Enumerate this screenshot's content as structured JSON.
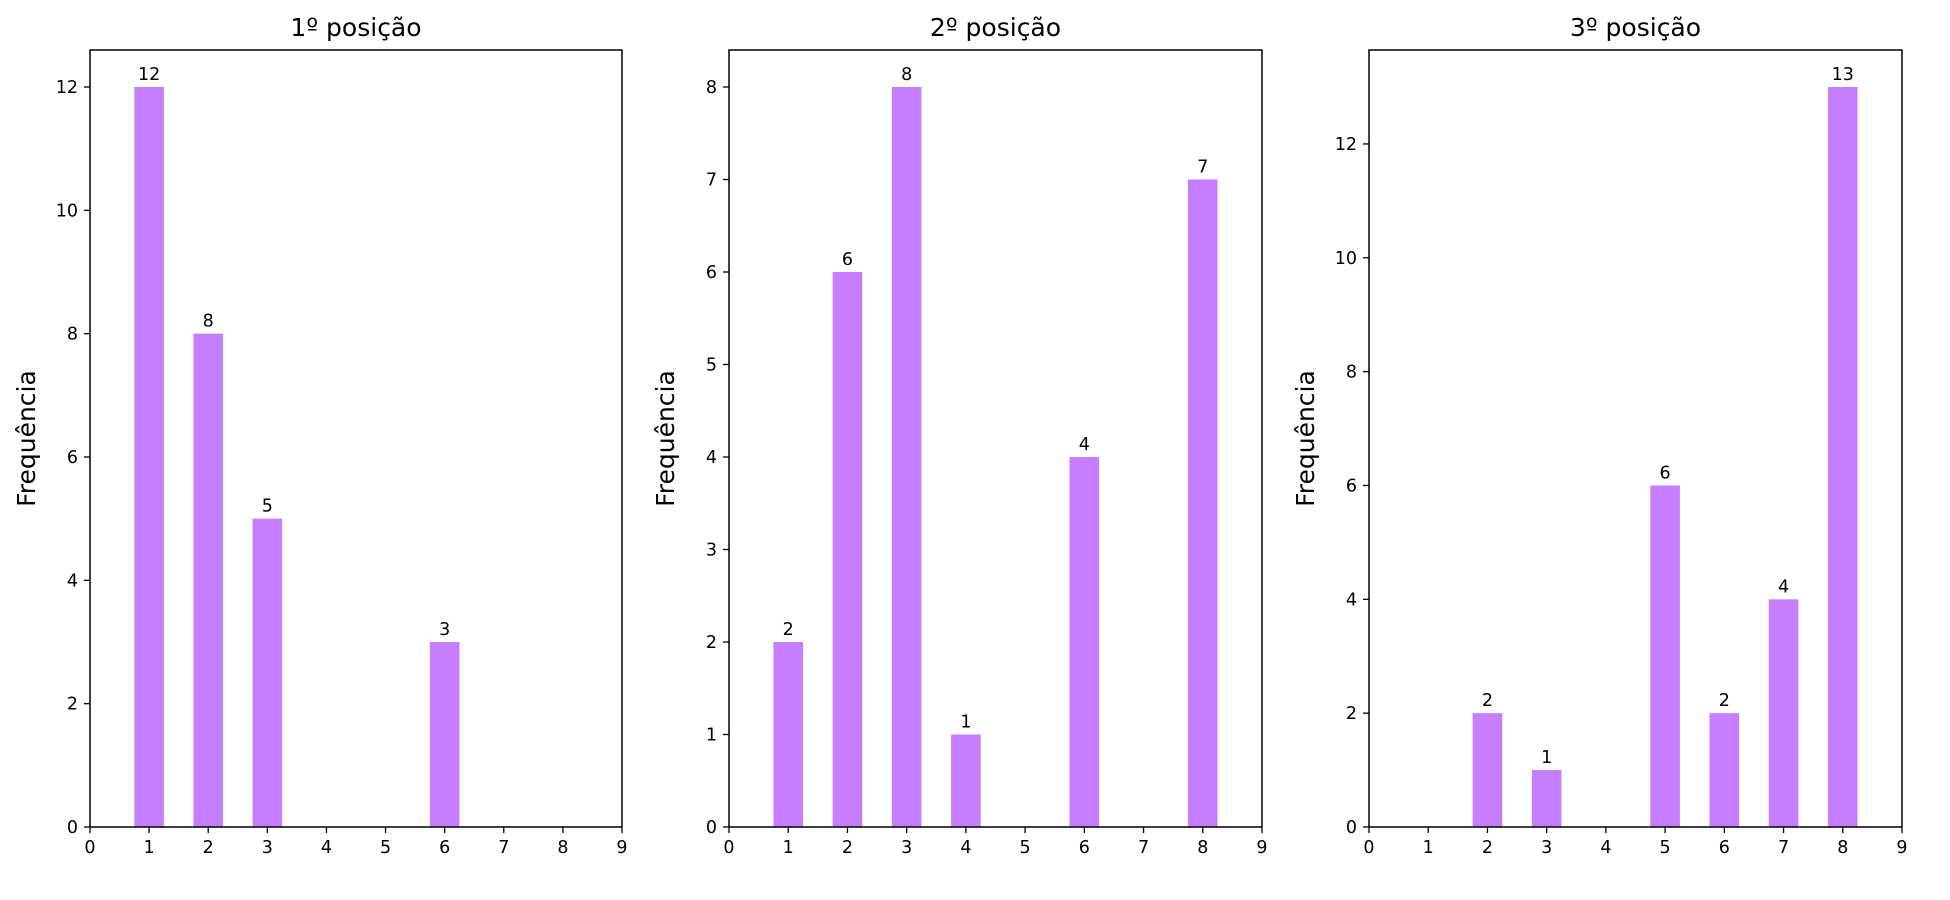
{
  "colors": {
    "bar": "#c77dff",
    "frame": "#000000",
    "text": "#000000",
    "background": "#ffffff"
  },
  "chart_data": [
    {
      "type": "bar",
      "title": "1º posição",
      "ylabel": "Frequência",
      "xlabel": "",
      "xlim": [
        0,
        9
      ],
      "xticks": [
        0,
        1,
        2,
        3,
        4,
        5,
        6,
        7,
        8,
        9
      ],
      "ylim": [
        0,
        12.6
      ],
      "yticks": [
        0,
        2,
        4,
        6,
        8,
        10,
        12
      ],
      "bar_width": 0.5,
      "categories": [
        1,
        2,
        3,
        6
      ],
      "values": [
        12,
        8,
        5,
        3
      ],
      "data_labels": [
        "12",
        "8",
        "5",
        "3"
      ],
      "grid": false,
      "legend": "none"
    },
    {
      "type": "bar",
      "title": "2º posição",
      "ylabel": "Frequência",
      "xlabel": "",
      "xlim": [
        0,
        9
      ],
      "xticks": [
        0,
        1,
        2,
        3,
        4,
        5,
        6,
        7,
        8,
        9
      ],
      "ylim": [
        0,
        8.4
      ],
      "yticks": [
        0,
        1,
        2,
        3,
        4,
        5,
        6,
        7,
        8
      ],
      "bar_width": 0.5,
      "categories": [
        1,
        2,
        3,
        4,
        6,
        8
      ],
      "values": [
        2,
        6,
        8,
        1,
        4,
        7
      ],
      "data_labels": [
        "2",
        "6",
        "8",
        "1",
        "4",
        "7"
      ],
      "grid": false,
      "legend": "none"
    },
    {
      "type": "bar",
      "title": "3º posição",
      "ylabel": "Frequência",
      "xlabel": "",
      "xlim": [
        0,
        9
      ],
      "xticks": [
        0,
        1,
        2,
        3,
        4,
        5,
        6,
        7,
        8,
        9
      ],
      "ylim": [
        0,
        13.65
      ],
      "yticks": [
        0,
        2,
        4,
        6,
        8,
        10,
        12
      ],
      "bar_width": 0.5,
      "categories": [
        2,
        3,
        5,
        6,
        7,
        8
      ],
      "values": [
        2,
        1,
        6,
        2,
        4,
        13
      ],
      "data_labels": [
        "2",
        "1",
        "6",
        "2",
        "4",
        "13"
      ],
      "grid": false,
      "legend": "none"
    }
  ]
}
